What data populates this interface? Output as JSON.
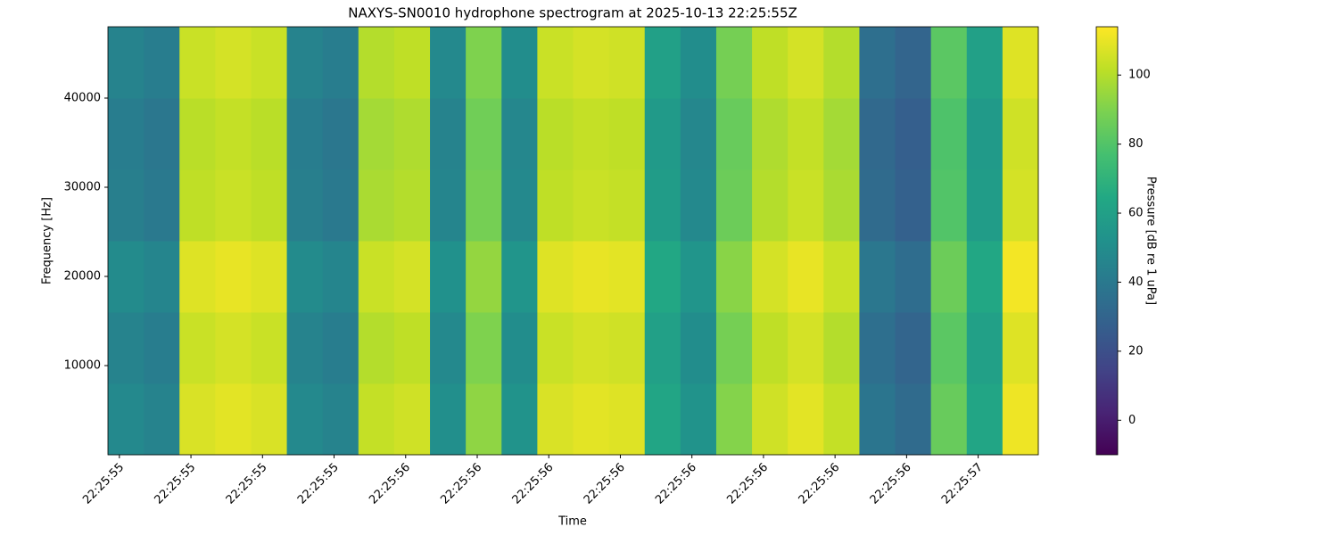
{
  "chart_data": {
    "type": "heatmap",
    "title": "NAXYS-SN0010 hydrophone spectrogram at 2025-10-13 22:25:55Z",
    "xlabel": "Time",
    "ylabel": "Frequency [Hz]",
    "colorbar_label": "Pressure [dB re 1 uPa]",
    "colormap": "viridis",
    "xlim": [
      55.48,
      57.105
    ],
    "ylim": [
      0,
      48000
    ],
    "clim": [
      -10,
      114
    ],
    "xticks": [
      {
        "value": 55.5,
        "label": "22:25:55"
      },
      {
        "value": 55.625,
        "label": "22:25:55"
      },
      {
        "value": 55.75,
        "label": "22:25:55"
      },
      {
        "value": 55.875,
        "label": "22:25:55"
      },
      {
        "value": 56.0,
        "label": "22:25:56"
      },
      {
        "value": 56.125,
        "label": "22:25:56"
      },
      {
        "value": 56.25,
        "label": "22:25:56"
      },
      {
        "value": 56.375,
        "label": "22:25:56"
      },
      {
        "value": 56.5,
        "label": "22:25:56"
      },
      {
        "value": 56.625,
        "label": "22:25:56"
      },
      {
        "value": 56.75,
        "label": "22:25:56"
      },
      {
        "value": 56.875,
        "label": "22:25:56"
      },
      {
        "value": 57.0,
        "label": "22:25:57"
      }
    ],
    "yticks": [
      10000,
      20000,
      30000,
      40000
    ],
    "cticks": [
      0,
      20,
      40,
      60,
      80,
      100
    ],
    "time_edges": [
      55.48,
      55.5425,
      55.605,
      55.6675,
      55.73,
      55.7925,
      55.855,
      55.9175,
      55.98,
      56.0425,
      56.105,
      56.1675,
      56.23,
      56.2925,
      56.355,
      56.4175,
      56.48,
      56.5425,
      56.605,
      56.6675,
      56.73,
      56.7925,
      56.855,
      56.9175,
      56.98,
      57.0425,
      57.105
    ],
    "freq_edges": [
      0,
      8000,
      16000,
      24000,
      32000,
      40000,
      48000
    ],
    "z": [
      [
        48,
        45,
        107,
        109,
        107,
        48,
        45,
        103,
        105,
        51,
        93,
        53,
        107,
        109,
        108,
        63,
        53,
        91,
        105,
        109,
        103,
        38,
        33,
        85,
        63,
        111
      ],
      [
        45,
        42,
        104,
        106,
        104,
        45,
        42,
        100,
        102,
        48,
        90,
        50,
        104,
        106,
        105,
        60,
        50,
        88,
        102,
        106,
        100,
        35,
        30,
        82,
        60,
        108
      ],
      [
        49,
        46,
        108,
        110,
        108,
        49,
        46,
        104,
        106,
        52,
        94,
        54,
        108,
        110,
        109,
        64,
        54,
        92,
        106,
        110,
        104,
        39,
        34,
        86,
        64,
        112
      ],
      [
        43,
        40,
        102,
        104,
        102,
        43,
        40,
        98,
        100,
        46,
        88,
        48,
        102,
        104,
        103,
        58,
        48,
        86,
        100,
        104,
        98,
        33,
        28,
        80,
        58,
        106
      ],
      [
        42,
        39,
        101,
        103,
        101,
        42,
        39,
        97,
        99,
        45,
        87,
        47,
        101,
        103,
        102,
        57,
        47,
        85,
        99,
        103,
        97,
        32,
        27,
        79,
        57,
        105
      ],
      [
        45,
        42,
        104,
        106,
        104,
        45,
        42,
        100,
        102,
        48,
        90,
        50,
        104,
        106,
        105,
        60,
        50,
        88,
        102,
        106,
        100,
        35,
        30,
        82,
        60,
        108
      ]
    ]
  }
}
